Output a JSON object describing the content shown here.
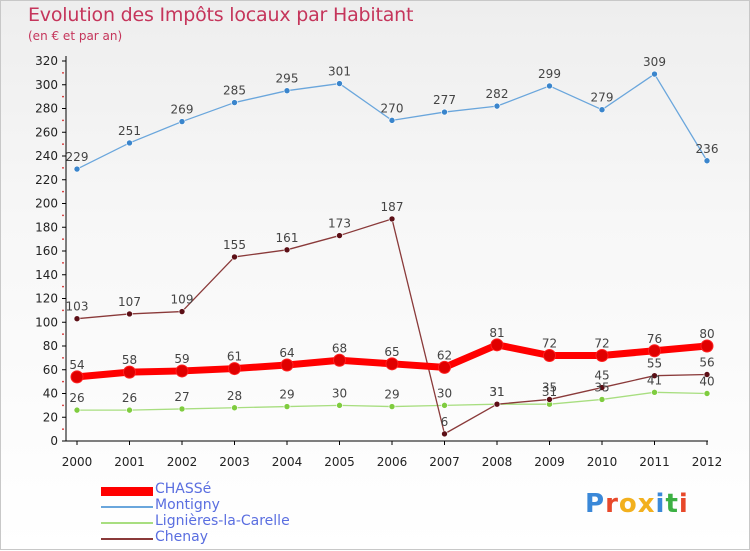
{
  "title": "Evolution des Impôts locaux par Habitant",
  "subtitle": "(en € et par an)",
  "logo": {
    "text": "Proxiti",
    "colors": [
      "#3a88d8",
      "#e8482a",
      "#f2b01e",
      "#f2b01e",
      "#3a88d8",
      "#3cb043",
      "#e8482a"
    ]
  },
  "chart_data": {
    "type": "line",
    "title": "Evolution des Impôts locaux par Habitant",
    "subtitle": "(en € et par an)",
    "xlabel": "",
    "ylabel": "",
    "x": [
      "2000",
      "2001",
      "2002",
      "2003",
      "2004",
      "2005",
      "2006",
      "2007",
      "2008",
      "2009",
      "2010",
      "2011",
      "2012"
    ],
    "yticks": [
      0,
      20,
      40,
      60,
      80,
      100,
      120,
      140,
      160,
      180,
      200,
      220,
      240,
      260,
      280,
      300,
      320
    ],
    "ylim": [
      0,
      320
    ],
    "grid": false,
    "legend_position": "bottom-left",
    "series": [
      {
        "name": "CHASSé",
        "color": "#ff0000",
        "marker": "#e00000",
        "width": 7,
        "values": [
          54,
          58,
          59,
          61,
          64,
          68,
          65,
          62,
          81,
          72,
          72,
          76,
          80
        ],
        "labels": [
          "54",
          "58",
          "59",
          "61",
          "64",
          "68",
          "65",
          "62",
          "81",
          "72",
          "72",
          "76",
          "80"
        ]
      },
      {
        "name": "Montigny",
        "color": "#6aa6dc",
        "marker": "#3a85cc",
        "width": 1.3,
        "values": [
          229,
          251,
          269,
          285,
          295,
          301,
          270,
          277,
          282,
          299,
          279,
          309,
          236
        ],
        "labels": [
          "229",
          "251",
          "269",
          "285",
          "295",
          "301",
          "270",
          "277",
          "282",
          "299",
          "279",
          "309",
          "236"
        ]
      },
      {
        "name": "Lignières-la-Carelle",
        "color": "#a8de80",
        "marker": "#7fcc3f",
        "width": 1.3,
        "values": [
          26,
          26,
          27,
          28,
          29,
          30,
          29,
          30,
          31,
          31,
          35,
          41,
          40
        ],
        "labels": [
          "26",
          "26",
          "27",
          "28",
          "29",
          "30",
          "29",
          "30",
          "31",
          "31",
          "35",
          "41",
          "40"
        ]
      },
      {
        "name": "Chenay",
        "color": "#8a3a3a",
        "marker": "#5c0f16",
        "width": 1.3,
        "values": [
          103,
          107,
          109,
          155,
          161,
          173,
          187,
          6,
          31,
          35,
          45,
          55,
          56
        ],
        "labels": [
          "103",
          "107",
          "109",
          "155",
          "161",
          "173",
          "187",
          "6",
          "31",
          "35",
          "45",
          "55",
          "56"
        ]
      }
    ]
  }
}
